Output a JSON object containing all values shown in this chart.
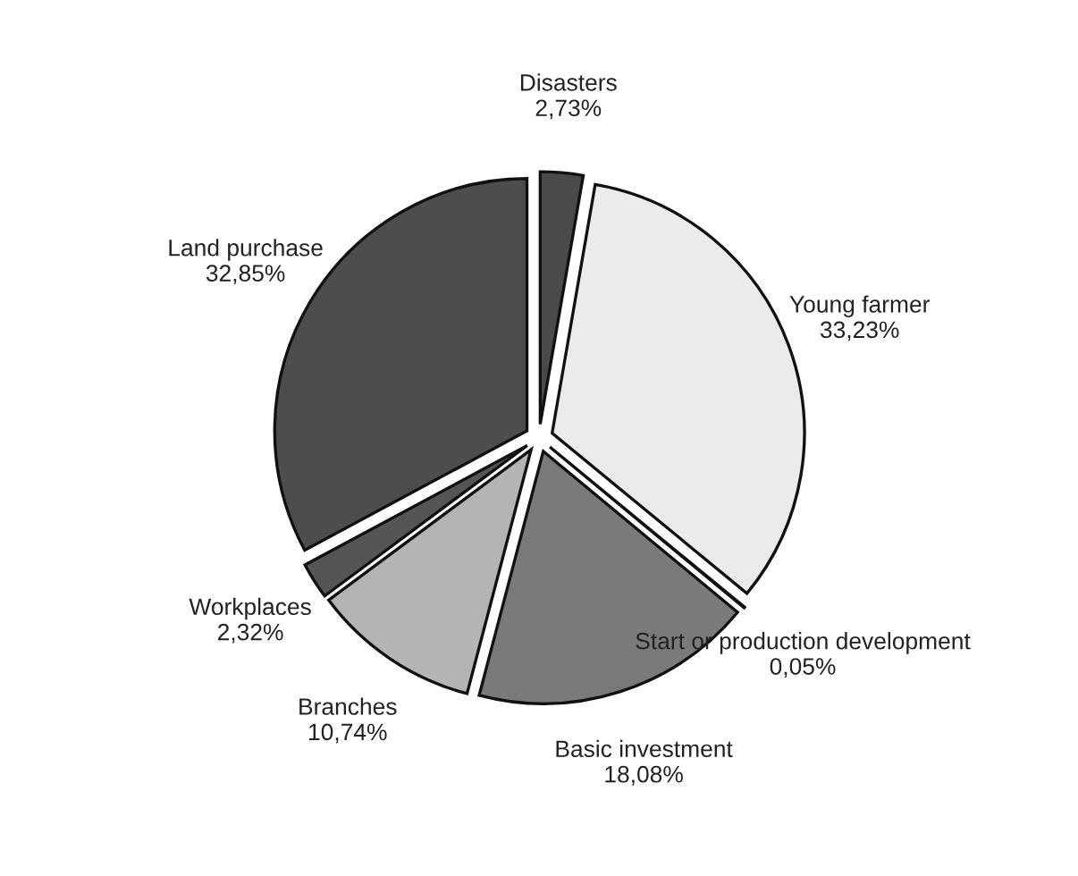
{
  "chart_data": {
    "type": "pie",
    "categories": [
      "Disasters",
      "Young farmer",
      "Start or production development",
      "Basic investment",
      "Branches",
      "Workplaces",
      "Land purchase"
    ],
    "values": [
      2.73,
      33.23,
      0.05,
      18.08,
      10.74,
      2.32,
      32.85
    ],
    "value_labels": [
      "2,73%",
      "33,23%",
      "0,05%",
      "18,08%",
      "10,74%",
      "2,32%",
      "32,85%"
    ],
    "colors": [
      "#4a4a4a",
      "#ebebeb",
      "#3a3a3a",
      "#7a7a7a",
      "#b4b4b4",
      "#555555",
      "#4d4d4d"
    ],
    "legend": false
  }
}
